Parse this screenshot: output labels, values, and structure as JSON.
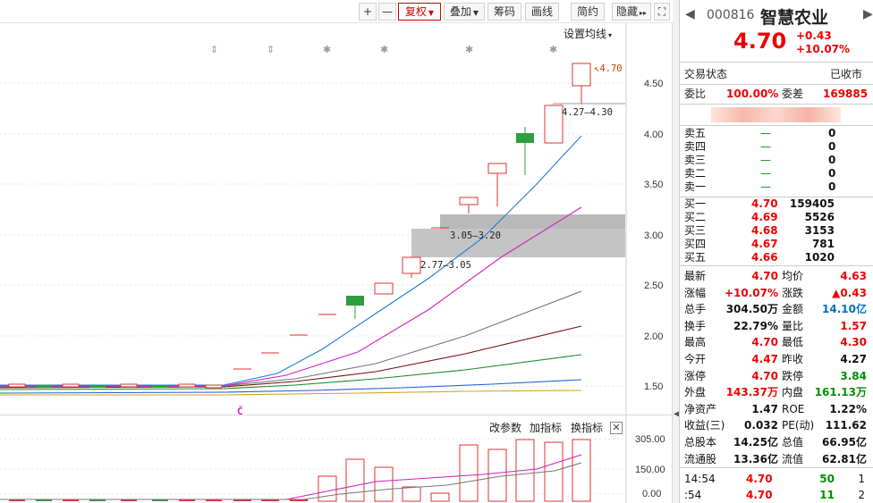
{
  "toolbar": {
    "plus": "+",
    "minus": "—",
    "fuquan": "复权",
    "diejia": "叠加",
    "choumai": "筹码",
    "huaxian": "画线",
    "jianyue": "简约",
    "yincang": "隐藏",
    "more": "▸▸",
    "fullscreen": "⛶"
  },
  "main_chart": {
    "set_ma_label": "设置均线",
    "y_ticks": [
      "4.50",
      "4.00",
      "3.50",
      "3.00",
      "2.50",
      "2.00",
      "1.50"
    ],
    "price_tag": "4.70",
    "annot_top": "4.27—4.30",
    "annot_mid": "3.05—3.20",
    "annot_low": "2.77—3.05",
    "c_marker": "Č",
    "colors": {
      "up": "#e03030",
      "down": "#2e9e3e",
      "gap": "#b5b5b5"
    }
  },
  "volume_chart": {
    "buttons": [
      "改参数",
      "加指标",
      "换指标"
    ],
    "close": "✕",
    "y_ticks": [
      "305.00",
      "150.00",
      "0.00"
    ]
  },
  "quote": {
    "code": "000816",
    "name": "智慧农业",
    "price": "4.70",
    "change": "+0.43",
    "change_pct": "+10.07%",
    "trade_status_label": "交易状态",
    "trade_status_value": "已收市",
    "webi_label": "委比",
    "webi_value": "100.00%",
    "weicha_label": "委差",
    "weicha_value": "169885",
    "sell": [
      {
        "label": "卖五",
        "price": "—",
        "vol": "0"
      },
      {
        "label": "卖四",
        "price": "—",
        "vol": "0"
      },
      {
        "label": "卖三",
        "price": "—",
        "vol": "0"
      },
      {
        "label": "卖二",
        "price": "—",
        "vol": "0"
      },
      {
        "label": "卖一",
        "price": "—",
        "vol": "0"
      }
    ],
    "buy": [
      {
        "label": "买一",
        "price": "4.70",
        "vol": "159405"
      },
      {
        "label": "买二",
        "price": "4.69",
        "vol": "5526"
      },
      {
        "label": "买三",
        "price": "4.68",
        "vol": "3153"
      },
      {
        "label": "买四",
        "price": "4.67",
        "vol": "781"
      },
      {
        "label": "买五",
        "price": "4.66",
        "vol": "1020"
      }
    ],
    "stats": [
      {
        "l1": "最新",
        "v1": "4.70",
        "c1": "red",
        "l2": "均价",
        "v2": "4.63",
        "c2": "red"
      },
      {
        "l1": "涨幅",
        "v1": "+10.07%",
        "c1": "red",
        "l2": "涨跌",
        "v2": "▲0.43",
        "c2": "red"
      },
      {
        "l1": "总手",
        "v1": "304.50万",
        "c1": "dark",
        "l2": "金额",
        "v2": "14.10亿",
        "c2": "blue"
      },
      {
        "l1": "换手",
        "v1": "22.79%",
        "c1": "dark",
        "l2": "量比",
        "v2": "1.57",
        "c2": "red"
      },
      {
        "l1": "最高",
        "v1": "4.70",
        "c1": "red",
        "l2": "最低",
        "v2": "4.30",
        "c2": "red"
      },
      {
        "l1": "今开",
        "v1": "4.47",
        "c1": "red",
        "l2": "昨收",
        "v2": "4.27",
        "c2": "dark"
      },
      {
        "l1": "涨停",
        "v1": "4.70",
        "c1": "red",
        "l2": "跌停",
        "v2": "3.84",
        "c2": "green"
      },
      {
        "l1": "外盘",
        "v1": "143.37万",
        "c1": "red",
        "l2": "内盘",
        "v2": "161.13万",
        "c2": "green"
      },
      {
        "l1": "净资产",
        "v1": "1.47",
        "c1": "dark",
        "l2": "ROE",
        "v2": "1.22%",
        "c2": "dark"
      },
      {
        "l1": "收益(三)",
        "v1": "0.032",
        "c1": "dark",
        "l2": "PE(动)",
        "v2": "111.62",
        "c2": "dark"
      },
      {
        "l1": "总股本",
        "v1": "14.25亿",
        "c1": "dark",
        "l2": "总值",
        "v2": "66.95亿",
        "c2": "dark"
      },
      {
        "l1": "流通股",
        "v1": "13.36亿",
        "c1": "dark",
        "l2": "流值",
        "v2": "62.81亿",
        "c2": "dark"
      }
    ],
    "ticks": [
      {
        "time": "14:54",
        "price": "4.70",
        "vol": "50",
        "n": "1"
      },
      {
        "time": ":54",
        "price": "4.70",
        "vol": "11",
        "n": "2"
      }
    ]
  }
}
